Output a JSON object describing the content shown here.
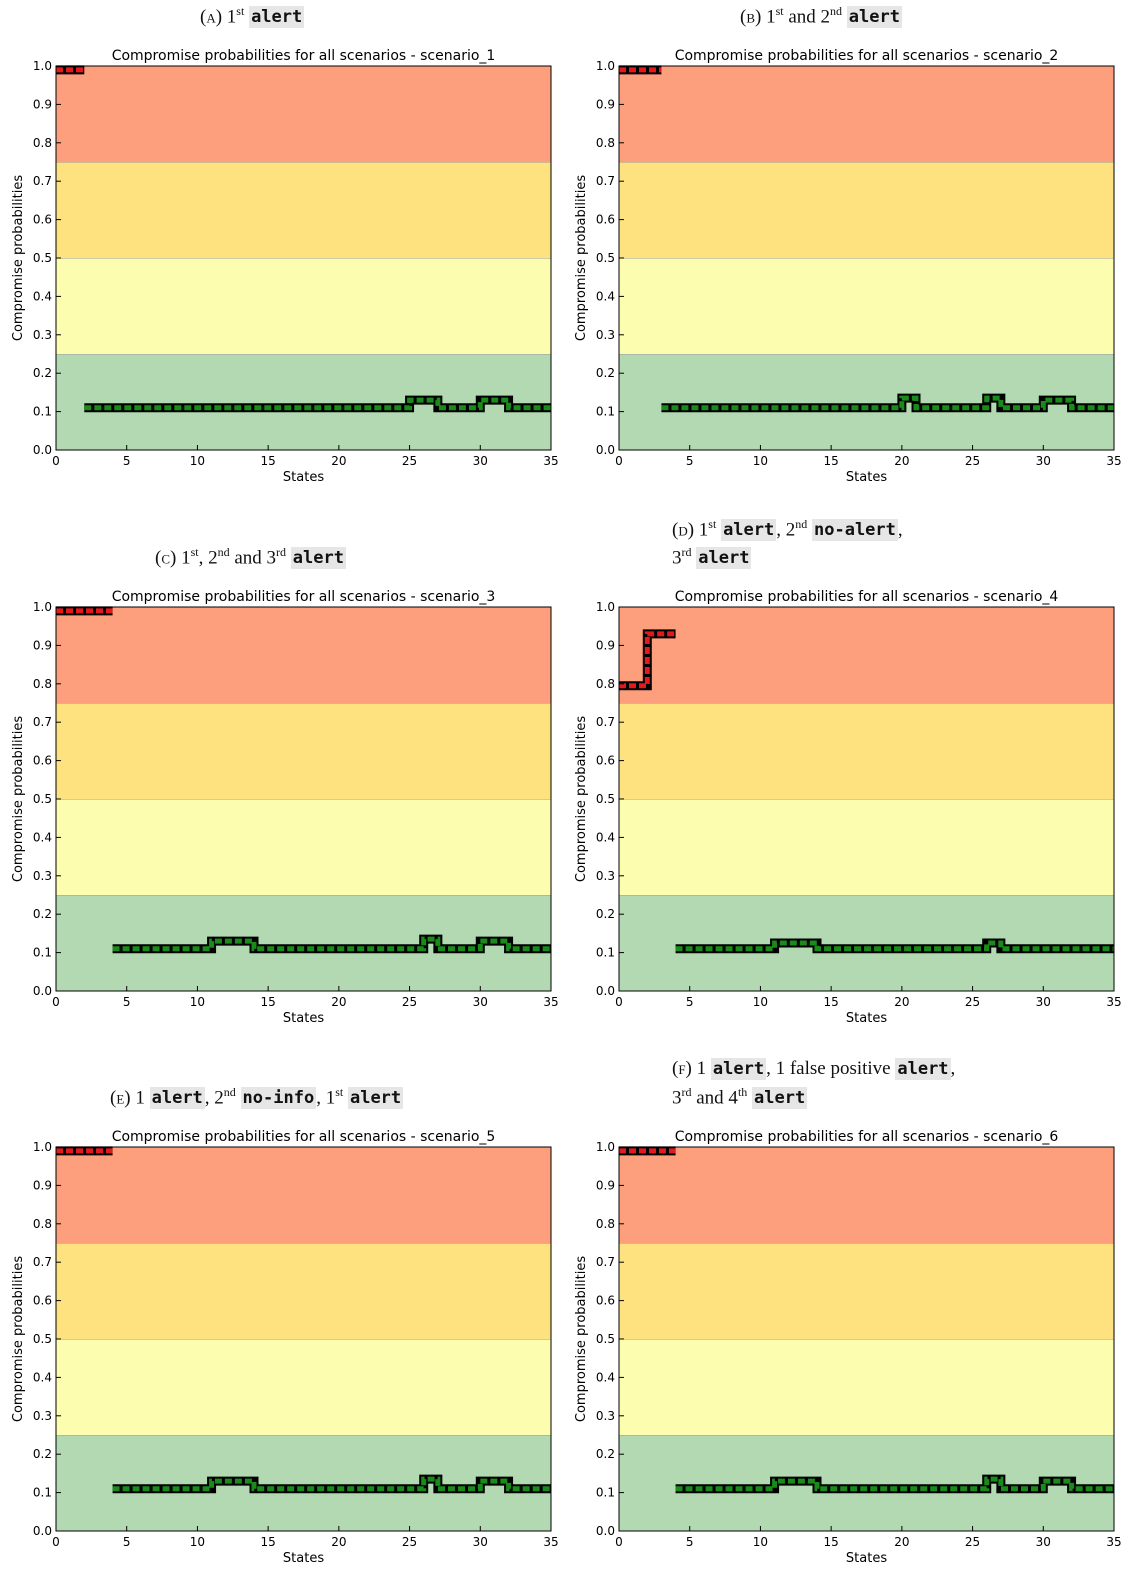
{
  "captions": [
    {
      "tag": "(a)",
      "parts": [
        [
          "t",
          "1"
        ],
        [
          "s",
          "st"
        ],
        [
          "t",
          " "
        ],
        [
          "c",
          "alert"
        ]
      ]
    },
    {
      "tag": "(b)",
      "parts": [
        [
          "t",
          "1"
        ],
        [
          "s",
          "st"
        ],
        [
          "t",
          " and 2"
        ],
        [
          "s",
          "nd"
        ],
        [
          "t",
          " "
        ],
        [
          "c",
          "alert"
        ]
      ]
    },
    {
      "tag": "(c)",
      "parts": [
        [
          "t",
          "1"
        ],
        [
          "s",
          "st"
        ],
        [
          "t",
          ", 2"
        ],
        [
          "s",
          "nd"
        ],
        [
          "t",
          " and 3"
        ],
        [
          "s",
          "rd"
        ],
        [
          "t",
          " "
        ],
        [
          "c",
          "alert"
        ]
      ]
    },
    {
      "tag": "(d)",
      "parts": [
        [
          "t",
          "1"
        ],
        [
          "s",
          "st"
        ],
        [
          "t",
          "  "
        ],
        [
          "c",
          "alert"
        ],
        [
          "t",
          ",  2"
        ],
        [
          "s",
          "nd"
        ],
        [
          "t",
          "  "
        ],
        [
          "c",
          "no-alert"
        ],
        [
          "t",
          ","
        ]
      ],
      "line2": [
        [
          "t",
          "3"
        ],
        [
          "s",
          "rd"
        ],
        [
          "t",
          " "
        ],
        [
          "c",
          "alert"
        ]
      ]
    },
    {
      "tag": "(e)",
      "parts": [
        [
          "t",
          "1 "
        ],
        [
          "c",
          "alert"
        ],
        [
          "t",
          ", 2"
        ],
        [
          "s",
          "nd"
        ],
        [
          "t",
          " "
        ],
        [
          "c",
          "no-info"
        ],
        [
          "t",
          ", 1"
        ],
        [
          "s",
          "st"
        ],
        [
          "t",
          " "
        ],
        [
          "c",
          "alert"
        ]
      ]
    },
    {
      "tag": "(f)",
      "parts": [
        [
          "t",
          "1 "
        ],
        [
          "c",
          "alert"
        ],
        [
          "t",
          ", 1 false positive "
        ],
        [
          "c",
          "alert"
        ],
        [
          "t",
          ","
        ]
      ],
      "line2": [
        [
          "t",
          "3"
        ],
        [
          "s",
          "rd"
        ],
        [
          "t",
          " and 4"
        ],
        [
          "s",
          "th"
        ],
        [
          "t",
          " "
        ],
        [
          "c",
          "alert"
        ]
      ]
    }
  ],
  "chart_data": [
    {
      "type": "line",
      "title": "Compromise probabilities for all scenarios - scenario_1",
      "xlabel": "States",
      "ylabel": "Compromise probabilities",
      "xlim": [
        0,
        35
      ],
      "ylim": [
        0,
        1.0
      ],
      "xticks": [
        "0",
        "5",
        "10",
        "15",
        "20",
        "25",
        "30",
        "35"
      ],
      "yticks": [
        "0.0",
        "0.1",
        "0.2",
        "0.3",
        "0.4",
        "0.5",
        "0.6",
        "0.7",
        "0.8",
        "0.9",
        "1.0"
      ],
      "bands": [
        {
          "from": 0.0,
          "to": 0.25,
          "color": "#b3d9b3"
        },
        {
          "from": 0.25,
          "to": 0.5,
          "color": "#fdfdb0"
        },
        {
          "from": 0.5,
          "to": 0.75,
          "color": "#fde27f"
        },
        {
          "from": 0.75,
          "to": 1.0,
          "color": "#fd9f7d"
        }
      ],
      "series": [
        {
          "color": "#e31a1c",
          "points": [
            [
              0,
              0.99
            ],
            [
              2,
              0.99
            ]
          ]
        },
        {
          "color": "#1a8a1a",
          "points": [
            [
              2,
              0.11
            ],
            [
              25,
              0.11
            ],
            [
              25,
              0.13
            ],
            [
              27,
              0.13
            ],
            [
              27,
              0.11
            ],
            [
              30,
              0.11
            ],
            [
              30,
              0.13
            ],
            [
              32,
              0.13
            ],
            [
              32,
              0.11
            ],
            [
              35,
              0.11
            ]
          ]
        }
      ]
    },
    {
      "type": "line",
      "title": "Compromise probabilities for all scenarios - scenario_2",
      "xlabel": "States",
      "ylabel": "Compromise probabilities",
      "xlim": [
        0,
        35
      ],
      "ylim": [
        0,
        1.0
      ],
      "xticks": [
        "0",
        "5",
        "10",
        "15",
        "20",
        "25",
        "30",
        "35"
      ],
      "yticks": [
        "0.0",
        "0.1",
        "0.2",
        "0.3",
        "0.4",
        "0.5",
        "0.6",
        "0.7",
        "0.8",
        "0.9",
        "1.0"
      ],
      "bands": [
        {
          "from": 0.0,
          "to": 0.25,
          "color": "#b3d9b3"
        },
        {
          "from": 0.25,
          "to": 0.5,
          "color": "#fdfdb0"
        },
        {
          "from": 0.5,
          "to": 0.75,
          "color": "#fde27f"
        },
        {
          "from": 0.75,
          "to": 1.0,
          "color": "#fd9f7d"
        }
      ],
      "series": [
        {
          "color": "#e31a1c",
          "points": [
            [
              0,
              0.99
            ],
            [
              3,
              0.99
            ]
          ]
        },
        {
          "color": "#1a8a1a",
          "points": [
            [
              3,
              0.11
            ],
            [
              20,
              0.11
            ],
            [
              20,
              0.135
            ],
            [
              21,
              0.135
            ],
            [
              21,
              0.11
            ],
            [
              26,
              0.11
            ],
            [
              26,
              0.135
            ],
            [
              27,
              0.135
            ],
            [
              27,
              0.11
            ],
            [
              30,
              0.11
            ],
            [
              30,
              0.13
            ],
            [
              32,
              0.13
            ],
            [
              32,
              0.11
            ],
            [
              35,
              0.11
            ]
          ]
        }
      ]
    },
    {
      "type": "line",
      "title": "Compromise probabilities for all scenarios - scenario_3",
      "xlabel": "States",
      "ylabel": "Compromise probabilities",
      "xlim": [
        0,
        35
      ],
      "ylim": [
        0,
        1.0
      ],
      "xticks": [
        "0",
        "5",
        "10",
        "15",
        "20",
        "25",
        "30",
        "35"
      ],
      "yticks": [
        "0.0",
        "0.1",
        "0.2",
        "0.3",
        "0.4",
        "0.5",
        "0.6",
        "0.7",
        "0.8",
        "0.9",
        "1.0"
      ],
      "bands": [
        {
          "from": 0.0,
          "to": 0.25,
          "color": "#b3d9b3"
        },
        {
          "from": 0.25,
          "to": 0.5,
          "color": "#fdfdb0"
        },
        {
          "from": 0.5,
          "to": 0.75,
          "color": "#fde27f"
        },
        {
          "from": 0.75,
          "to": 1.0,
          "color": "#fd9f7d"
        }
      ],
      "series": [
        {
          "color": "#e31a1c",
          "points": [
            [
              0,
              0.99
            ],
            [
              4,
              0.99
            ]
          ]
        },
        {
          "color": "#1a8a1a",
          "points": [
            [
              4,
              0.11
            ],
            [
              11,
              0.11
            ],
            [
              11,
              0.13
            ],
            [
              14,
              0.13
            ],
            [
              14,
              0.11
            ],
            [
              26,
              0.11
            ],
            [
              26,
              0.135
            ],
            [
              27,
              0.135
            ],
            [
              27,
              0.11
            ],
            [
              30,
              0.11
            ],
            [
              30,
              0.13
            ],
            [
              32,
              0.13
            ],
            [
              32,
              0.11
            ],
            [
              35,
              0.11
            ]
          ]
        }
      ]
    },
    {
      "type": "line",
      "title": "Compromise probabilities for all scenarios - scenario_4",
      "xlabel": "States",
      "ylabel": "Compromise probabilities",
      "xlim": [
        0,
        35
      ],
      "ylim": [
        0,
        1.0
      ],
      "xticks": [
        "0",
        "5",
        "10",
        "15",
        "20",
        "25",
        "30",
        "35"
      ],
      "yticks": [
        "0.0",
        "0.1",
        "0.2",
        "0.3",
        "0.4",
        "0.5",
        "0.6",
        "0.7",
        "0.8",
        "0.9",
        "1.0"
      ],
      "bands": [
        {
          "from": 0.0,
          "to": 0.25,
          "color": "#b3d9b3"
        },
        {
          "from": 0.25,
          "to": 0.5,
          "color": "#fdfdb0"
        },
        {
          "from": 0.5,
          "to": 0.75,
          "color": "#fde27f"
        },
        {
          "from": 0.75,
          "to": 1.0,
          "color": "#fd9f7d"
        }
      ],
      "series": [
        {
          "color": "#e31a1c",
          "points": [
            [
              0,
              0.795
            ],
            [
              2,
              0.795
            ],
            [
              2,
              0.93
            ],
            [
              4,
              0.93
            ]
          ]
        },
        {
          "color": "#1a8a1a",
          "points": [
            [
              4,
              0.11
            ],
            [
              11,
              0.11
            ],
            [
              11,
              0.125
            ],
            [
              14,
              0.125
            ],
            [
              14,
              0.11
            ],
            [
              26,
              0.11
            ],
            [
              26,
              0.125
            ],
            [
              27,
              0.125
            ],
            [
              27,
              0.11
            ],
            [
              35,
              0.11
            ]
          ]
        }
      ]
    },
    {
      "type": "line",
      "title": "Compromise probabilities for all scenarios - scenario_5",
      "xlabel": "States",
      "ylabel": "Compromise probabilities",
      "xlim": [
        0,
        35
      ],
      "ylim": [
        0,
        1.0
      ],
      "xticks": [
        "0",
        "5",
        "10",
        "15",
        "20",
        "25",
        "30",
        "35"
      ],
      "yticks": [
        "0.0",
        "0.1",
        "0.2",
        "0.3",
        "0.4",
        "0.5",
        "0.6",
        "0.7",
        "0.8",
        "0.9",
        "1.0"
      ],
      "bands": [
        {
          "from": 0.0,
          "to": 0.25,
          "color": "#b3d9b3"
        },
        {
          "from": 0.25,
          "to": 0.5,
          "color": "#fdfdb0"
        },
        {
          "from": 0.5,
          "to": 0.75,
          "color": "#fde27f"
        },
        {
          "from": 0.75,
          "to": 1.0,
          "color": "#fd9f7d"
        }
      ],
      "series": [
        {
          "color": "#e31a1c",
          "points": [
            [
              0,
              0.99
            ],
            [
              4,
              0.99
            ]
          ]
        },
        {
          "color": "#1a8a1a",
          "points": [
            [
              4,
              0.11
            ],
            [
              11,
              0.11
            ],
            [
              11,
              0.13
            ],
            [
              14,
              0.13
            ],
            [
              14,
              0.11
            ],
            [
              26,
              0.11
            ],
            [
              26,
              0.135
            ],
            [
              27,
              0.135
            ],
            [
              27,
              0.11
            ],
            [
              30,
              0.11
            ],
            [
              30,
              0.13
            ],
            [
              32,
              0.13
            ],
            [
              32,
              0.11
            ],
            [
              35,
              0.11
            ]
          ]
        }
      ]
    },
    {
      "type": "line",
      "title": "Compromise probabilities for all scenarios - scenario_6",
      "xlabel": "States",
      "ylabel": "Compromise probabilities",
      "xlim": [
        0,
        35
      ],
      "ylim": [
        0,
        1.0
      ],
      "xticks": [
        "0",
        "5",
        "10",
        "15",
        "20",
        "25",
        "30",
        "35"
      ],
      "yticks": [
        "0.0",
        "0.1",
        "0.2",
        "0.3",
        "0.4",
        "0.5",
        "0.6",
        "0.7",
        "0.8",
        "0.9",
        "1.0"
      ],
      "bands": [
        {
          "from": 0.0,
          "to": 0.25,
          "color": "#b3d9b3"
        },
        {
          "from": 0.25,
          "to": 0.5,
          "color": "#fdfdb0"
        },
        {
          "from": 0.5,
          "to": 0.75,
          "color": "#fde27f"
        },
        {
          "from": 0.75,
          "to": 1.0,
          "color": "#fd9f7d"
        }
      ],
      "series": [
        {
          "color": "#e31a1c",
          "points": [
            [
              0,
              0.99
            ],
            [
              4,
              0.99
            ]
          ]
        },
        {
          "color": "#1a8a1a",
          "points": [
            [
              4,
              0.11
            ],
            [
              11,
              0.11
            ],
            [
              11,
              0.13
            ],
            [
              14,
              0.13
            ],
            [
              14,
              0.11
            ],
            [
              26,
              0.11
            ],
            [
              26,
              0.135
            ],
            [
              27,
              0.135
            ],
            [
              27,
              0.11
            ],
            [
              30,
              0.11
            ],
            [
              30,
              0.13
            ],
            [
              32,
              0.13
            ],
            [
              32,
              0.11
            ],
            [
              35,
              0.11
            ]
          ]
        }
      ]
    }
  ]
}
